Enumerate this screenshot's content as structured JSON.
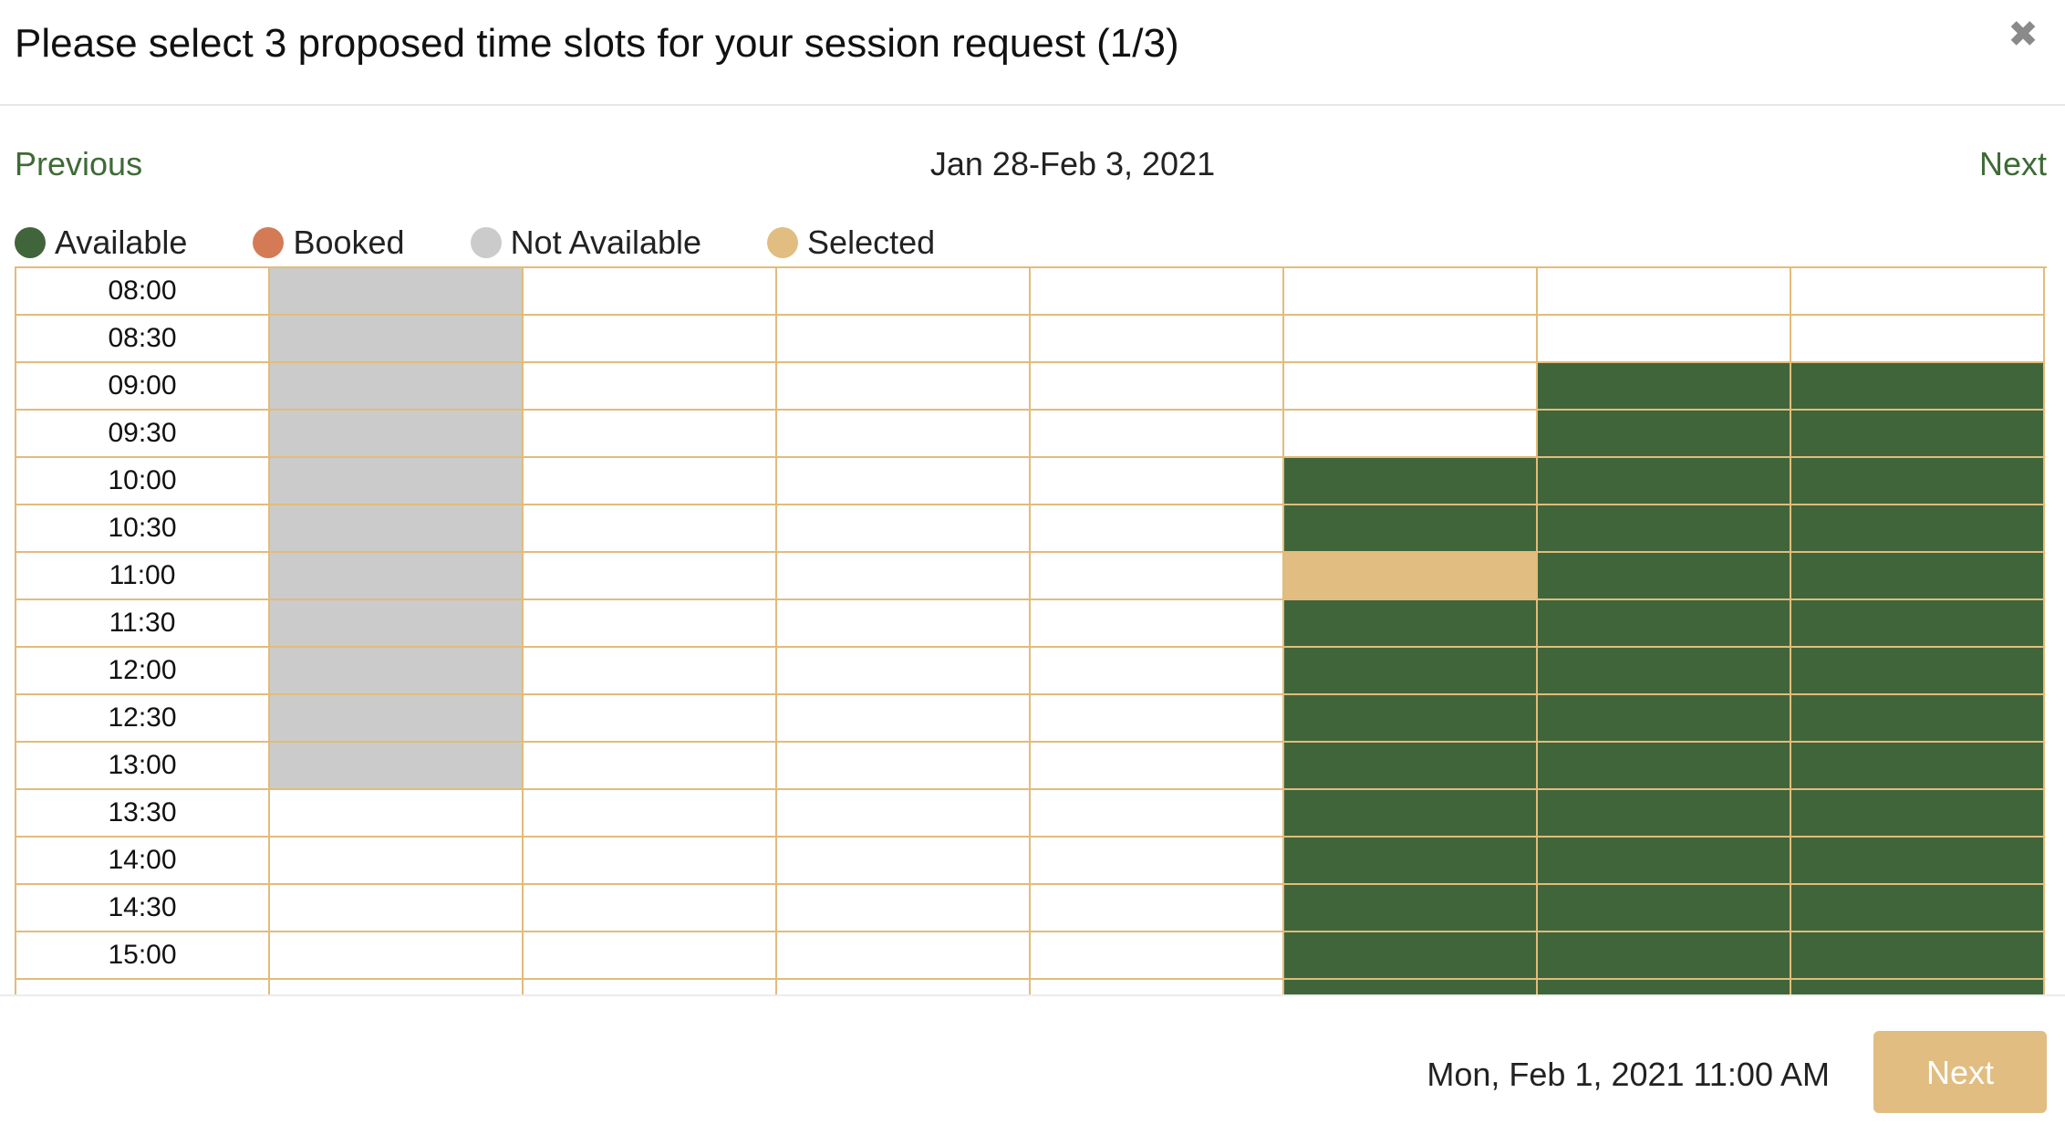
{
  "modal": {
    "title": "Please select 3 proposed time slots for your session request (1/3)",
    "close_icon": "close-icon"
  },
  "nav": {
    "previous_label": "Previous",
    "date_range": "Jan 28-Feb 3, 2021",
    "next_label": "Next"
  },
  "legend": [
    {
      "label": "Available",
      "color": "#41653a",
      "status": "available"
    },
    {
      "label": "Booked",
      "color": "#d47b56",
      "status": "booked"
    },
    {
      "label": "Not Available",
      "color": "#cbcbcb",
      "status": "na"
    },
    {
      "label": "Selected",
      "color": "#e1bd82",
      "status": "selected"
    }
  ],
  "colors": {
    "available": "#41653a",
    "booked": "#d47b56",
    "not_available": "#cbcbcb",
    "selected": "#e1bd82",
    "grid_line": "#e2bc7a",
    "link": "#3e6b35"
  },
  "schedule": {
    "day_count": 7,
    "rows": [
      {
        "time": "08:00",
        "slots": [
          "na",
          "",
          "",
          "",
          "",
          "",
          ""
        ]
      },
      {
        "time": "08:30",
        "slots": [
          "na",
          "",
          "",
          "",
          "",
          "",
          ""
        ]
      },
      {
        "time": "09:00",
        "slots": [
          "na",
          "",
          "",
          "",
          "",
          "available",
          "available"
        ]
      },
      {
        "time": "09:30",
        "slots": [
          "na",
          "",
          "",
          "",
          "",
          "available",
          "available"
        ]
      },
      {
        "time": "10:00",
        "slots": [
          "na",
          "",
          "",
          "",
          "available",
          "available",
          "available"
        ]
      },
      {
        "time": "10:30",
        "slots": [
          "na",
          "",
          "",
          "",
          "available",
          "available",
          "available"
        ]
      },
      {
        "time": "11:00",
        "slots": [
          "na",
          "",
          "",
          "",
          "selected",
          "available",
          "available"
        ]
      },
      {
        "time": "11:30",
        "slots": [
          "na",
          "",
          "",
          "",
          "available",
          "available",
          "available"
        ]
      },
      {
        "time": "12:00",
        "slots": [
          "na",
          "",
          "",
          "",
          "available",
          "available",
          "available"
        ]
      },
      {
        "time": "12:30",
        "slots": [
          "na",
          "",
          "",
          "",
          "available",
          "available",
          "available"
        ]
      },
      {
        "time": "13:00",
        "slots": [
          "na",
          "",
          "",
          "",
          "available",
          "available",
          "available"
        ]
      },
      {
        "time": "13:30",
        "slots": [
          "",
          "",
          "",
          "",
          "available",
          "available",
          "available"
        ]
      },
      {
        "time": "14:00",
        "slots": [
          "",
          "",
          "",
          "",
          "available",
          "available",
          "available"
        ]
      },
      {
        "time": "14:30",
        "slots": [
          "",
          "",
          "",
          "",
          "available",
          "available",
          "available"
        ]
      },
      {
        "time": "15:00",
        "slots": [
          "",
          "",
          "",
          "",
          "available",
          "available",
          "available"
        ]
      },
      {
        "time": "",
        "slots": [
          "",
          "",
          "",
          "",
          "available",
          "available",
          "available"
        ]
      }
    ]
  },
  "footer": {
    "selected_datetime": "Mon, Feb 1, 2021 11:00 AM",
    "next_button_label": "Next"
  }
}
